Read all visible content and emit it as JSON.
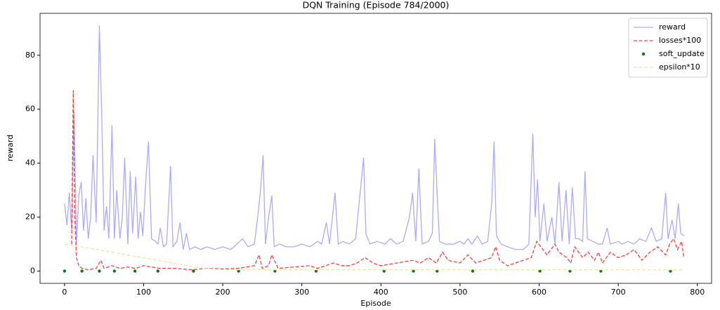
{
  "chart_data": {
    "type": "line",
    "title": "DQN Training (Episode 784/2000)",
    "x_label": "Episode",
    "y_label": "reward",
    "xlim": [
      -31,
      818
    ],
    "ylim": [
      -4.55,
      95.55
    ],
    "xticks": [
      0,
      100,
      200,
      300,
      400,
      500,
      600,
      700,
      800
    ],
    "yticks": [
      0,
      20,
      40,
      60,
      80
    ],
    "legend": "upper right",
    "grid": false,
    "series": [
      {
        "name": "reward",
        "color": "#aaaaff",
        "style": "solid",
        "x": [
          0,
          3,
          6,
          9,
          12,
          15,
          18,
          21,
          24,
          27,
          30,
          33,
          36,
          40,
          44,
          47,
          50,
          53,
          56,
          60,
          63,
          66,
          70,
          73,
          76,
          80,
          83,
          86,
          90,
          93,
          96,
          99,
          102,
          106,
          110,
          115,
          118,
          121,
          125,
          129,
          134,
          137,
          142,
          146,
          150,
          154,
          158,
          165,
          172,
          180,
          190,
          200,
          210,
          218,
          225,
          232,
          240,
          245,
          248,
          251,
          254,
          258,
          262,
          265,
          272,
          280,
          290,
          300,
          310,
          320,
          325,
          331,
          335,
          342,
          346,
          352,
          360,
          368,
          374,
          378,
          381,
          386,
          395,
          405,
          412,
          420,
          428,
          436,
          440,
          444,
          448,
          452,
          460,
          465,
          468,
          471,
          474,
          482,
          492,
          500,
          505,
          510,
          515,
          522,
          528,
          535,
          540,
          543,
          546,
          552,
          560,
          570,
          580,
          587,
          592,
          595,
          598,
          601,
          606,
          610,
          616,
          620,
          625,
          629,
          634,
          638,
          642,
          646,
          650,
          655,
          658,
          661,
          668,
          675,
          680,
          686,
          690,
          700,
          705,
          712,
          720,
          727,
          735,
          742,
          748,
          755,
          760,
          763,
          768,
          772,
          776,
          779,
          783
        ],
        "values": [
          25,
          17,
          29,
          15,
          59,
          10,
          28,
          33,
          15,
          27,
          12,
          20,
          43,
          18,
          91,
          58,
          15,
          24,
          12,
          54,
          12,
          30,
          12,
          20,
          42,
          10,
          37,
          14,
          35,
          12,
          22,
          13,
          30,
          48,
          12,
          11,
          10,
          16,
          9,
          10,
          39,
          9,
          11,
          18,
          8,
          14,
          8,
          9,
          8,
          9,
          8,
          9,
          8,
          10,
          12,
          9,
          10,
          22,
          31,
          43,
          10,
          20,
          28,
          9,
          10,
          9,
          9,
          10,
          9,
          11,
          10,
          18,
          10,
          29,
          10,
          11,
          10,
          12,
          30,
          42,
          14,
          10,
          11,
          10,
          12,
          10,
          11,
          20,
          29,
          11,
          38,
          10,
          11,
          14,
          49,
          29,
          11,
          10,
          10,
          11,
          10,
          12,
          10,
          13,
          10,
          11,
          25,
          48,
          13,
          10,
          9,
          8,
          8,
          10,
          51,
          20,
          34,
          11,
          25,
          11,
          20,
          10,
          33,
          11,
          30,
          10,
          31,
          12,
          12,
          11,
          37,
          12,
          11,
          10,
          10,
          16,
          10,
          11,
          10,
          11,
          10,
          12,
          11,
          16,
          11,
          12,
          29,
          12,
          19,
          12,
          25,
          14,
          13
        ]
      },
      {
        "name": "losses*100",
        "color": "#ff3b3b",
        "style": "dashed",
        "x": [
          9,
          11,
          13,
          15,
          18,
          22,
          30,
          40,
          46,
          50,
          60,
          70,
          80,
          90,
          100,
          110,
          120,
          140,
          160,
          180,
          200,
          220,
          240,
          246,
          250,
          258,
          262,
          270,
          290,
          310,
          320,
          340,
          350,
          360,
          370,
          380,
          390,
          400,
          420,
          440,
          450,
          460,
          470,
          478,
          485,
          500,
          510,
          520,
          530,
          540,
          545,
          550,
          560,
          570,
          580,
          590,
          597,
          602,
          610,
          620,
          625,
          635,
          640,
          645,
          655,
          662,
          670,
          675,
          680,
          690,
          700,
          710,
          720,
          730,
          740,
          750,
          760,
          765,
          770,
          775,
          780,
          783
        ],
        "values": [
          10,
          67,
          20,
          5,
          2,
          1,
          0.5,
          1,
          4,
          1,
          2,
          1,
          1.5,
          1,
          2,
          1.5,
          1,
          1,
          0.5,
          1,
          0.8,
          1,
          2,
          6,
          1,
          2,
          6,
          1,
          1.5,
          2,
          1,
          3,
          2,
          2,
          3,
          5,
          3,
          2,
          3,
          4,
          3,
          5,
          3,
          7,
          4,
          3,
          6,
          3,
          4,
          5,
          9,
          4,
          2,
          3,
          4,
          5,
          11,
          9,
          6,
          10,
          7,
          5,
          3,
          9,
          5,
          7,
          4,
          7,
          3,
          7,
          5,
          6,
          8,
          4,
          7,
          9,
          6,
          10,
          12,
          8,
          11,
          5
        ]
      },
      {
        "name": "soft_update",
        "color": "#008000",
        "style": "dots",
        "x": [
          0,
          22,
          44,
          63,
          89,
          118,
          163,
          220,
          266,
          318,
          404,
          441,
          471,
          516,
          601,
          639,
          678,
          766
        ],
        "values": [
          0,
          0,
          0,
          0,
          0,
          0,
          0,
          0,
          0,
          0,
          0,
          0,
          0,
          0,
          0,
          0,
          0,
          0
        ]
      },
      {
        "name": "epsilon*10",
        "color": "#e8e8a8",
        "style": "dashed",
        "x": [
          0,
          25,
          50,
          75,
          100,
          125,
          150,
          175,
          200,
          783
        ],
        "values": [
          10,
          8.8,
          7.5,
          6.2,
          4.9,
          3.6,
          2.3,
          1.0,
          0.5,
          0.5
        ]
      }
    ]
  }
}
